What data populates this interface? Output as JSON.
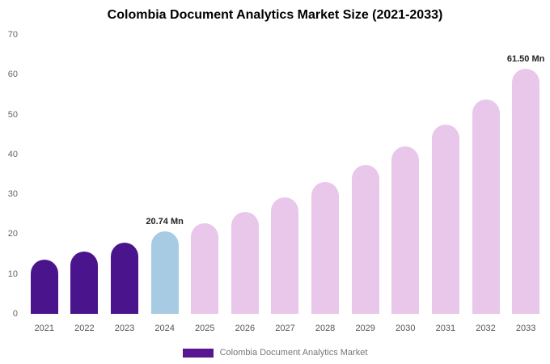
{
  "title": "Colombia Document Analytics Market Size (2021-2033)",
  "legend": {
    "label": "Colombia Document Analytics Market",
    "swatch_color": "#5a1691"
  },
  "colors": {
    "historical_bar": "#4a148c",
    "base_year_bar": "#a6cbe3",
    "forecast_bar": "#e8c7ea",
    "background": "#ffffff"
  },
  "chart_data": {
    "type": "bar",
    "title": "Colombia Document Analytics Market Size (2021-2033)",
    "xlabel": "",
    "ylabel": "",
    "ylim": [
      0,
      70
    ],
    "yticks": [
      0,
      10,
      20,
      30,
      40,
      50,
      60,
      70
    ],
    "grid": false,
    "legend_position": "bottom",
    "categories": [
      "2021",
      "2022",
      "2023",
      "2024",
      "2025",
      "2026",
      "2027",
      "2028",
      "2029",
      "2030",
      "2031",
      "2032",
      "2033"
    ],
    "values": [
      13.5,
      15.7,
      17.8,
      20.74,
      22.8,
      25.6,
      29.2,
      33.0,
      37.3,
      42.0,
      47.5,
      53.8,
      61.5
    ],
    "bar_colors": [
      "#4a148c",
      "#4a148c",
      "#4a148c",
      "#a6cbe3",
      "#e8c7ea",
      "#e8c7ea",
      "#e8c7ea",
      "#e8c7ea",
      "#e8c7ea",
      "#e8c7ea",
      "#e8c7ea",
      "#e8c7ea",
      "#e8c7ea"
    ],
    "annotations": [
      {
        "category": "2024",
        "index": 3,
        "text": "20.74 Mn"
      },
      {
        "category": "2033",
        "index": 12,
        "text": "61.50 Mn"
      }
    ]
  }
}
